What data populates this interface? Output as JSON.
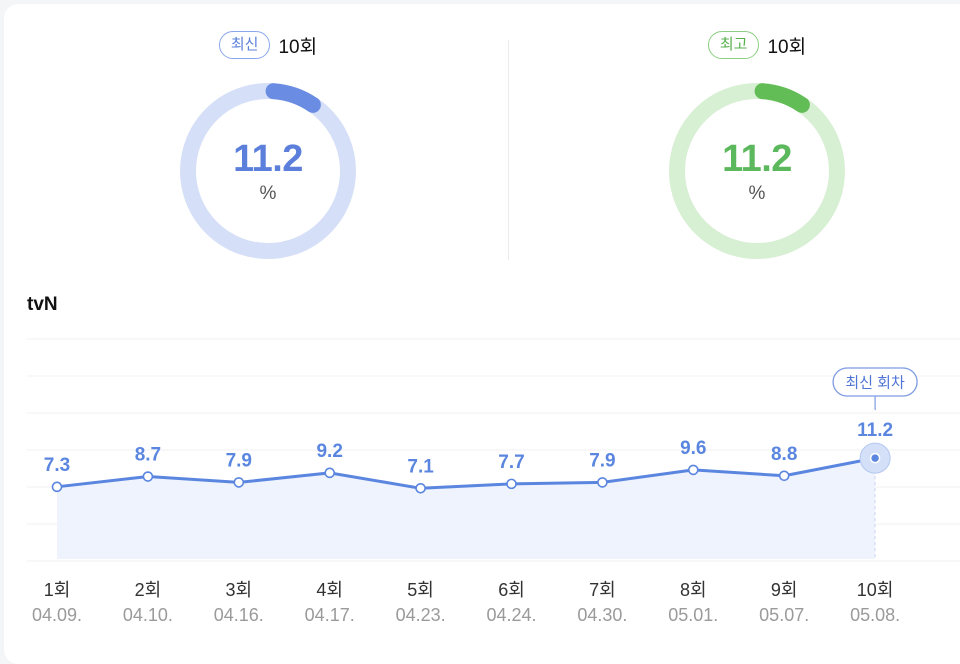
{
  "summary": {
    "latest": {
      "label": "최신",
      "episode": "10회",
      "value": "11.2",
      "unit": "%",
      "color": "#5b7fdb"
    },
    "best": {
      "label": "최고",
      "episode": "10회",
      "value": "11.2",
      "unit": "%",
      "color": "#5cb85c"
    }
  },
  "chart_data": {
    "type": "line",
    "title": "tvN",
    "unit": "%",
    "categories": [
      "1회",
      "2회",
      "3회",
      "4회",
      "5회",
      "6회",
      "7회",
      "8회",
      "9회",
      "10회"
    ],
    "dates": [
      "04.09.",
      "04.10.",
      "04.16.",
      "04.17.",
      "04.23.",
      "04.24.",
      "04.30.",
      "05.01.",
      "05.07.",
      "05.08."
    ],
    "values": [
      7.3,
      8.7,
      7.9,
      9.2,
      7.1,
      7.7,
      7.9,
      9.6,
      8.8,
      11.2
    ],
    "labels": [
      "7.3",
      "8.7",
      "7.9",
      "9.2",
      "7.1",
      "7.7",
      "7.9",
      "9.6",
      "8.8",
      "11.2"
    ],
    "highlight_index": 9,
    "highlight_label": "최신 회차",
    "line_color": "#5b86e0",
    "fill_color": "#eef3fd"
  }
}
